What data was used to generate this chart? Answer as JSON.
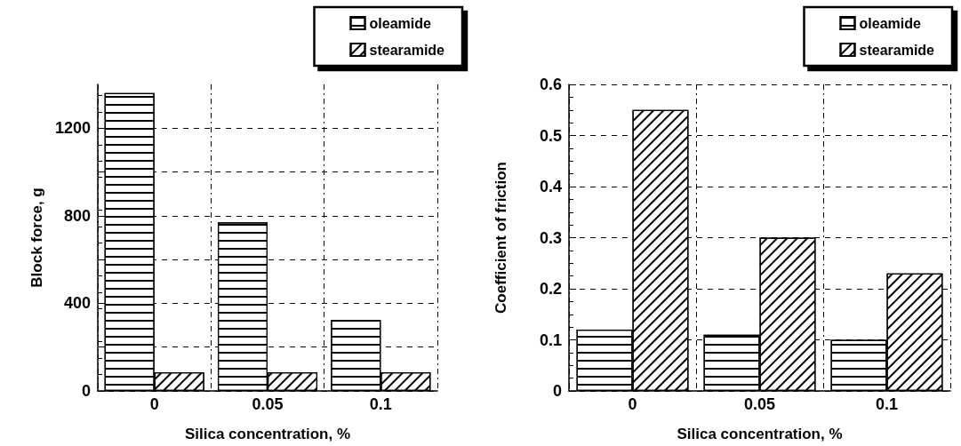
{
  "chart_data": [
    {
      "type": "bar",
      "xlabel": "Silica concentration, %",
      "ylabel": "Block force, g",
      "categories": [
        "0",
        "0.05",
        "0.1"
      ],
      "series": [
        {
          "name": "oleamide",
          "color": "#ffffff",
          "values": [
            1360,
            770,
            325
          ]
        },
        {
          "name": "stearamide",
          "color": "#ffffff",
          "values": [
            85,
            85,
            85
          ]
        }
      ],
      "ylim": [
        0,
        1400
      ],
      "yticks": [
        0,
        {
          "value": 200,
          "label": null
        },
        400,
        {
          "value": 600,
          "label": null
        },
        800,
        {
          "value": 1000,
          "label": null
        },
        1200
      ],
      "grid": true,
      "legend": "top right"
    },
    {
      "type": "bar",
      "xlabel": "Silica concentration, %",
      "ylabel": "Coefficient of friction",
      "categories": [
        "0",
        "0.05",
        "0.1"
      ],
      "series": [
        {
          "name": "oleamide",
          "color": "#ffffff",
          "values": [
            0.12,
            0.11,
            0.1
          ]
        },
        {
          "name": "stearamide",
          "color": "#ffffff",
          "values": [
            0.55,
            0.3,
            0.23
          ]
        }
      ],
      "ylim": [
        0,
        0.6
      ],
      "yticks": [
        0,
        0.1,
        0.2,
        0.3,
        0.4,
        0.5,
        0.6
      ],
      "grid": true,
      "legend": "top right"
    }
  ]
}
